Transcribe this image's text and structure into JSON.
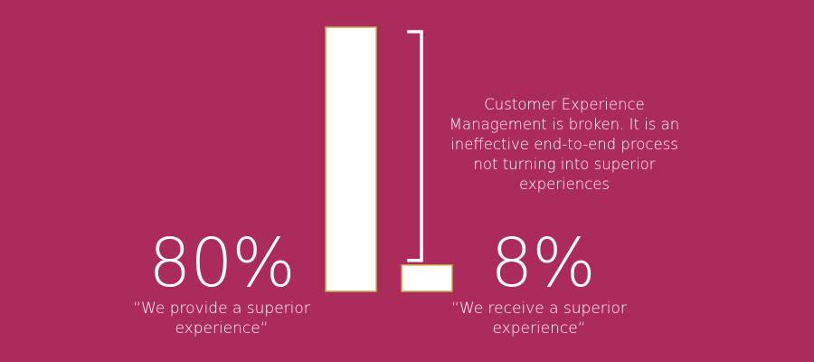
{
  "chart_data": {
    "type": "bar",
    "categories": [
      "We provide a superior experience",
      "We receive a superior experience"
    ],
    "values": [
      80,
      8
    ],
    "ylim": [
      0,
      100
    ],
    "grid": false,
    "data_labels": [
      "80%",
      "8%"
    ],
    "captions": [
      "“We provide a superior experience“",
      "“We receive a superior experience“"
    ],
    "annotation": "Customer Experience Management is broken. It is an ineffective end-to-end process not turning into superior experiences"
  },
  "colors": {
    "background": "#ab2b5a",
    "bar_fill": "#ffffff",
    "bar_outline": "#c8a24a",
    "bracket": "#ffffff"
  }
}
